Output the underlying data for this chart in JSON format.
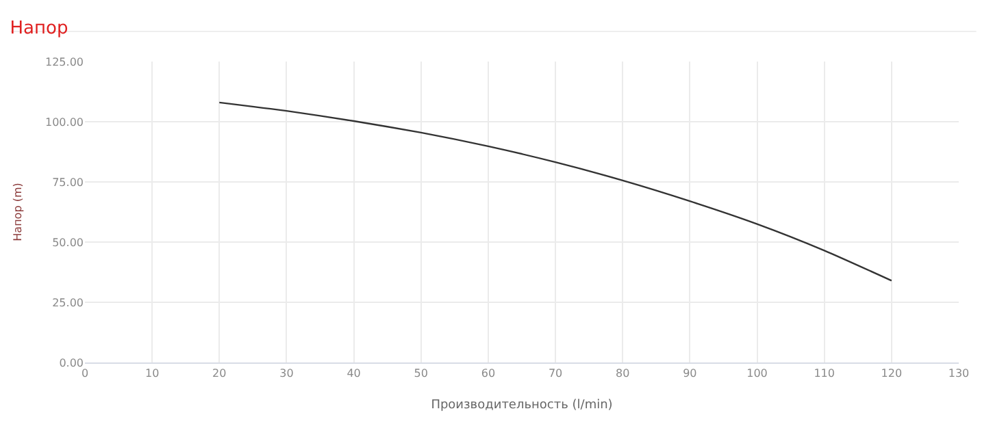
{
  "chart_data": {
    "type": "line",
    "title": "Напор",
    "xlabel": "Производительность (l/min)",
    "ylabel": "Напор (m)",
    "x": [
      20,
      30,
      40,
      50,
      60,
      70,
      80,
      90,
      100,
      110,
      120
    ],
    "series": [
      {
        "color": "#333333",
        "values": [
          108,
          104.5,
          100.3,
          95.5,
          89.8,
          83.2,
          75.6,
          67,
          57.5,
          46.5,
          34
        ]
      }
    ],
    "xlim": [
      0,
      130
    ],
    "xticks": [
      0,
      10,
      20,
      30,
      40,
      50,
      60,
      70,
      80,
      90,
      100,
      110,
      120,
      130
    ],
    "ylim": [
      0,
      125
    ],
    "yticks": [
      {
        "value": 0,
        "label": "0.00"
      },
      {
        "value": 25,
        "label": "25.00"
      },
      {
        "value": 50,
        "label": "50.00"
      },
      {
        "value": 75,
        "label": "75.00"
      },
      {
        "value": 100,
        "label": "100.00"
      },
      {
        "value": 125,
        "label": "125.00"
      }
    ],
    "grid": true,
    "marker": "none",
    "line_style": "solid"
  }
}
